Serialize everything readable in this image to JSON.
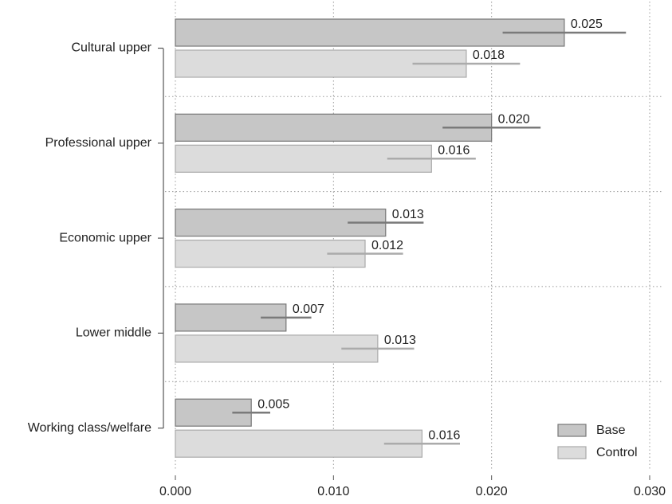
{
  "chart_data": {
    "type": "hbar",
    "categories": [
      "Cultural upper",
      "Professional upper",
      "Economic upper",
      "Lower middle",
      "Working class/welfare"
    ],
    "series": [
      {
        "name": "Base",
        "color": "#c6c6c6",
        "values": [
          0.0246,
          0.02,
          0.0133,
          0.007,
          0.0048
        ],
        "value_labels": [
          "0.025",
          "0.020",
          "0.013",
          "0.007",
          "0.005"
        ],
        "errors": [
          0.0039,
          0.0031,
          0.0024,
          0.0016,
          0.0012
        ]
      },
      {
        "name": "Control",
        "color": "#dcdcdc",
        "values": [
          0.0184,
          0.0162,
          0.012,
          0.0128,
          0.0156
        ],
        "value_labels": [
          "0.018",
          "0.016",
          "0.012",
          "0.013",
          "0.016"
        ],
        "errors": [
          0.0034,
          0.0028,
          0.0024,
          0.0023,
          0.0024
        ]
      }
    ],
    "xlim": [
      0,
      0.03
    ],
    "xticks": [
      {
        "value": 0,
        "label": "0.000"
      },
      {
        "value": 0.01,
        "label": "0.010"
      },
      {
        "value": 0.02,
        "label": "0.020"
      },
      {
        "value": 0.03,
        "label": "0.030"
      }
    ],
    "grid": true,
    "legend": "lower right"
  }
}
